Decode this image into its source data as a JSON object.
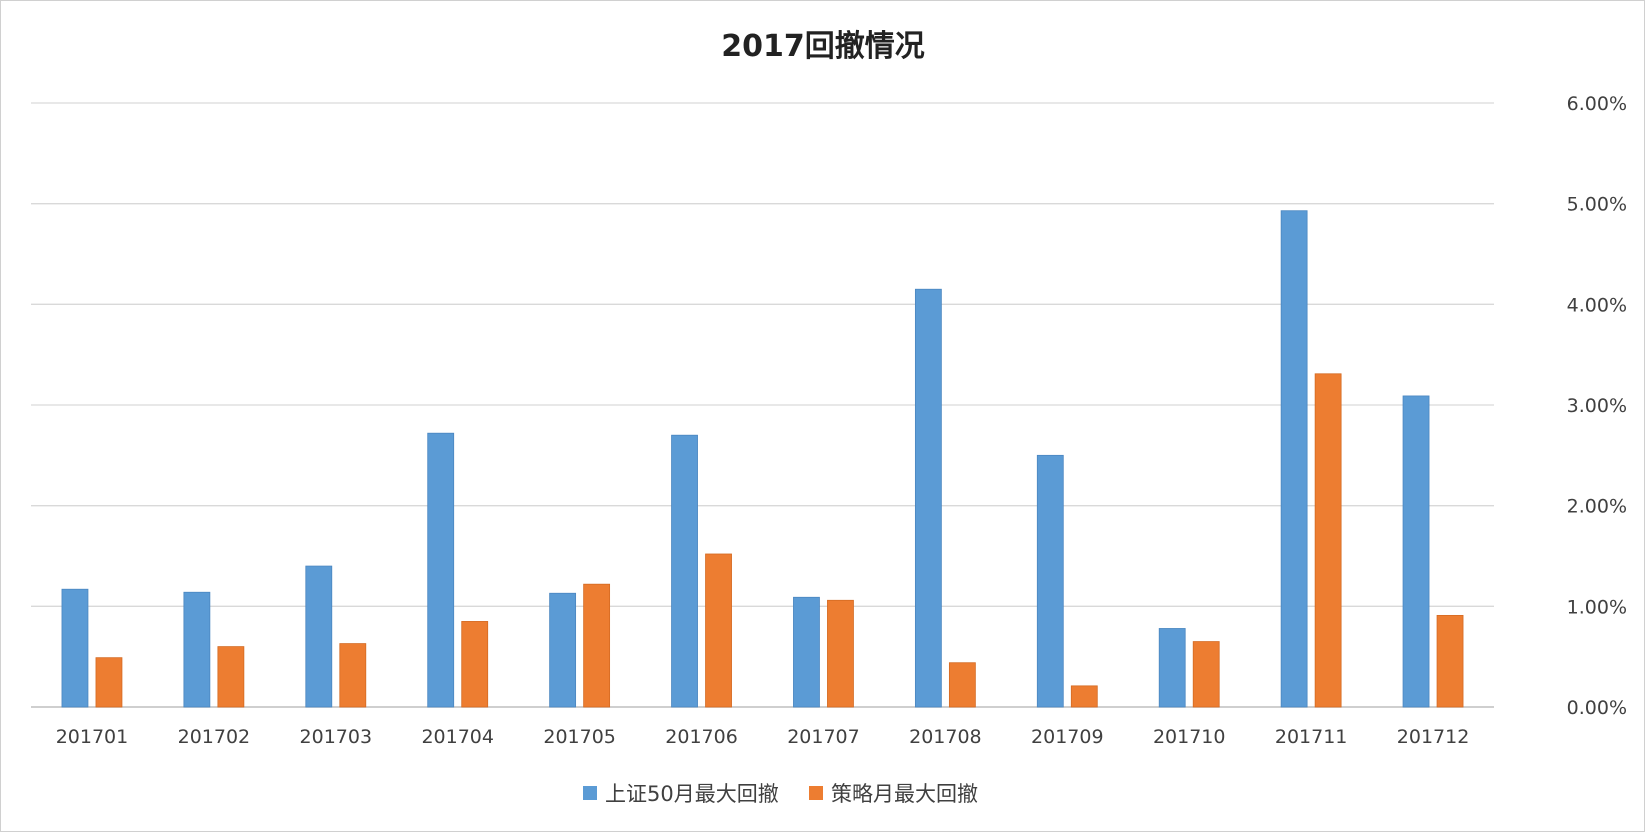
{
  "chart_data": {
    "type": "bar",
    "title": "2017回撤情况",
    "categories": [
      "201701",
      "201702",
      "201703",
      "201704",
      "201705",
      "201706",
      "201707",
      "201708",
      "201709",
      "201710",
      "201711",
      "201712"
    ],
    "series": [
      {
        "name": "上证50月最大回撤",
        "color": "#5B9BD5",
        "values": [
          0.0117,
          0.0114,
          0.014,
          0.0272,
          0.0113,
          0.027,
          0.0109,
          0.0415,
          0.025,
          0.0078,
          0.0493,
          0.0309
        ]
      },
      {
        "name": "策略月最大回撤",
        "color": "#ED7D31",
        "values": [
          0.0049,
          0.006,
          0.0063,
          0.0085,
          0.0122,
          0.0152,
          0.0106,
          0.0044,
          0.0021,
          0.0065,
          0.0331,
          0.0091
        ]
      }
    ],
    "y_axis": {
      "position": "right",
      "ylim": [
        0,
        0.06
      ],
      "ticks": [
        0,
        0.01,
        0.02,
        0.03,
        0.04,
        0.05,
        0.06
      ],
      "tick_labels": [
        "0.00%",
        "1.00%",
        "2.00%",
        "3.00%",
        "4.00%",
        "5.00%",
        "6.00%"
      ]
    },
    "grid": true,
    "legend": "bottom"
  }
}
